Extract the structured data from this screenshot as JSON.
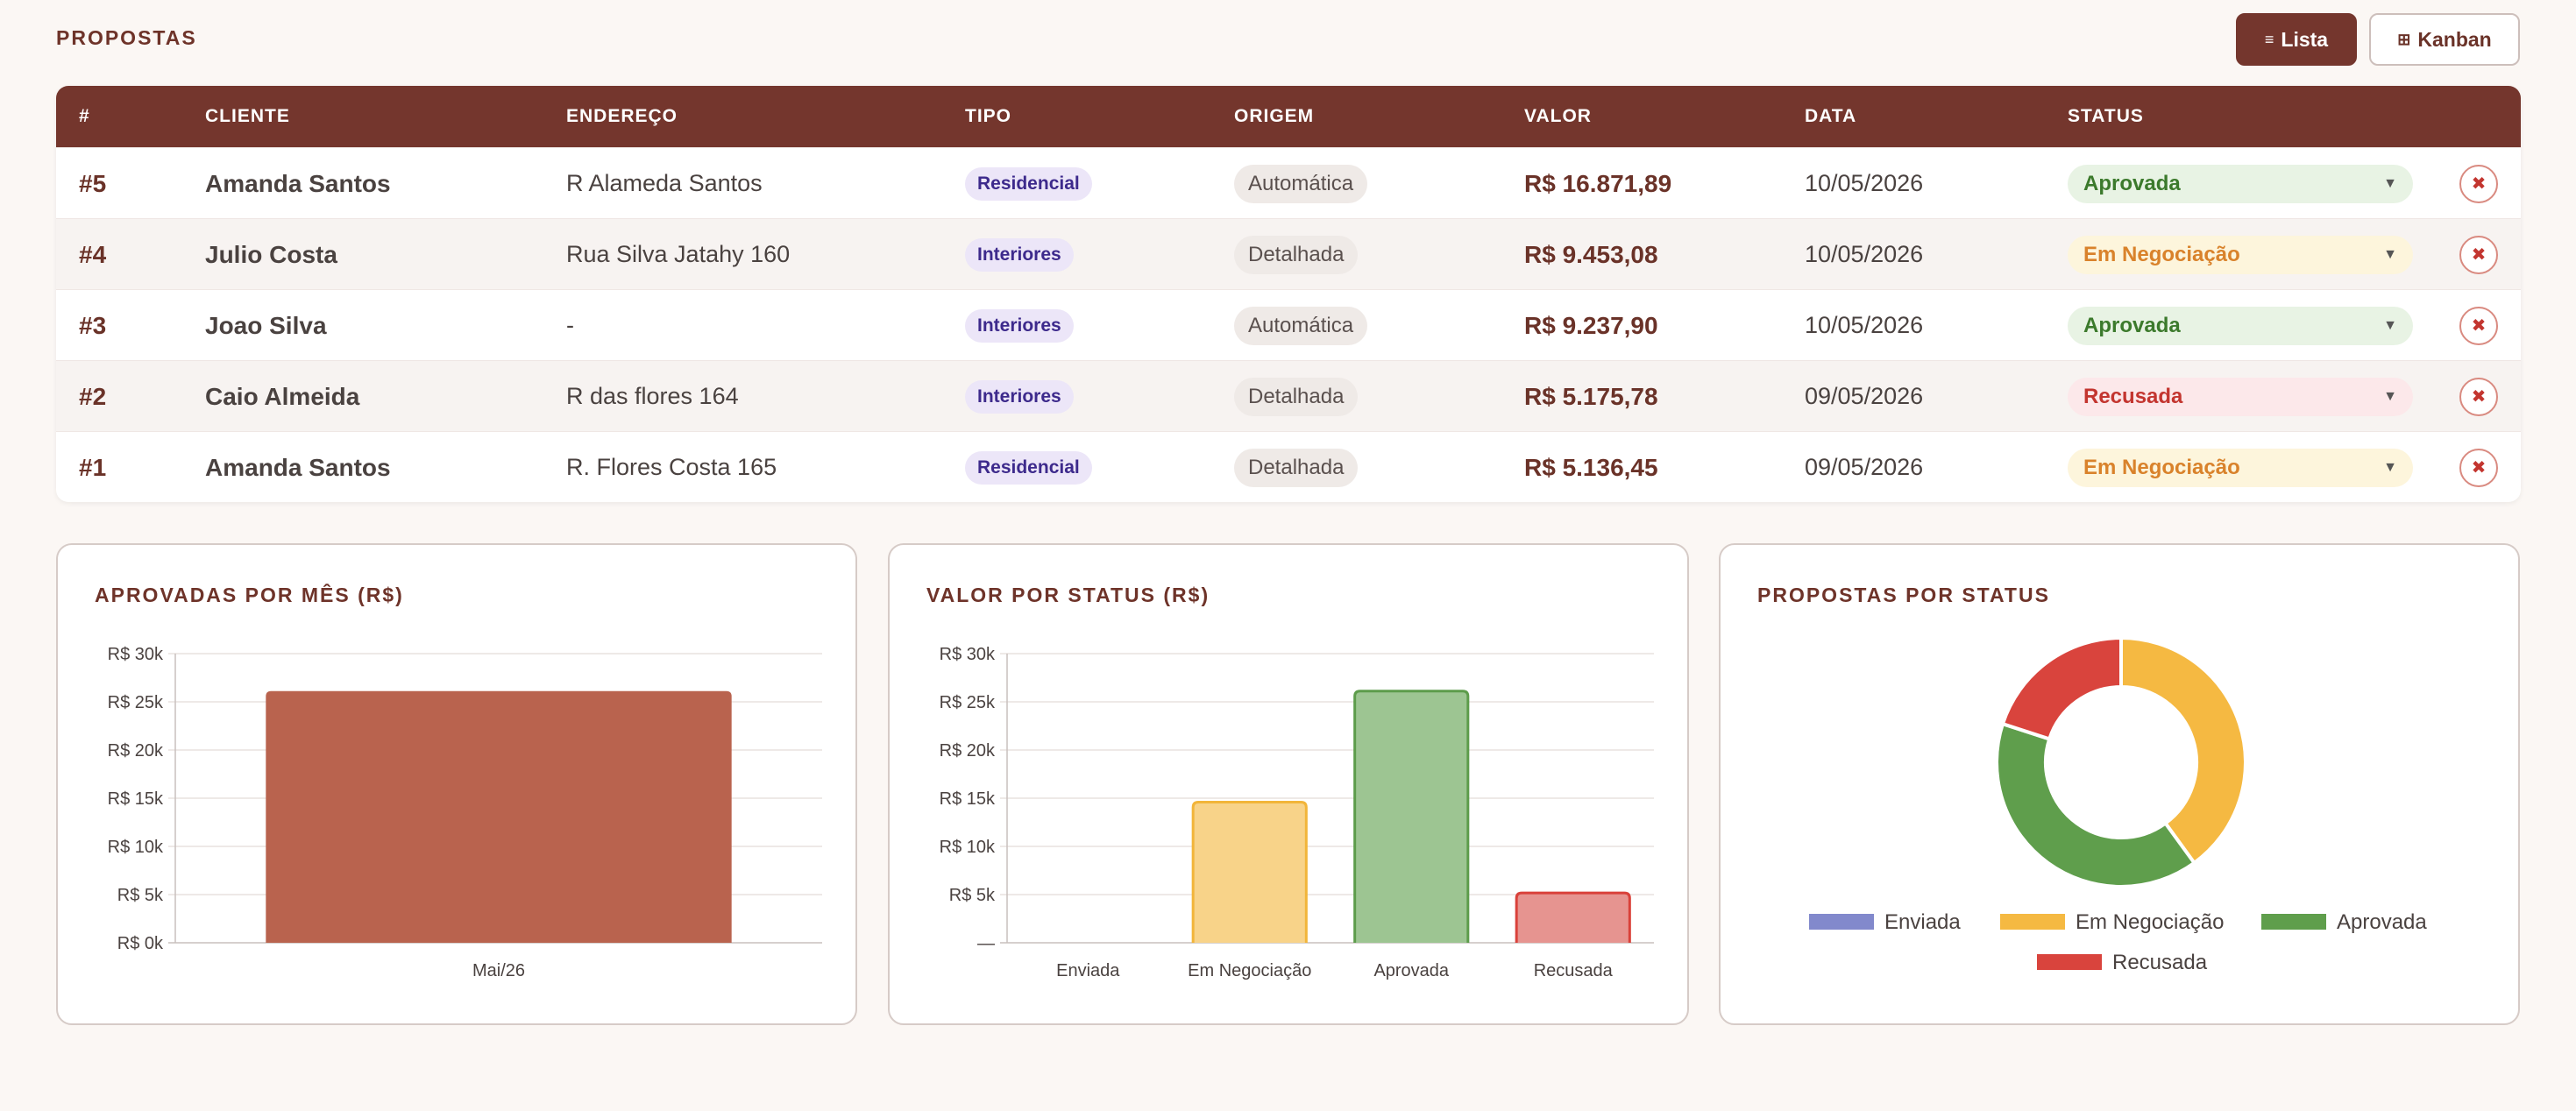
{
  "page": {
    "title": "PROPOSTAS"
  },
  "view_toggle": {
    "list_icon": "list-icon",
    "list_label": "Lista",
    "kanban_icon": "grid-icon",
    "kanban_label": "Kanban"
  },
  "table": {
    "headers": [
      "#",
      "CLIENTE",
      "ENDEREÇO",
      "TIPO",
      "ORIGEM",
      "VALOR",
      "DATA",
      "STATUS"
    ],
    "rows": [
      {
        "id": "#5",
        "cliente": "Amanda Santos",
        "endereco": "R Alameda Santos",
        "tipo": "Residencial",
        "origem": "Automática",
        "valor": "R$ 16.871,89",
        "data": "10/05/2026",
        "status": "Aprovada"
      },
      {
        "id": "#4",
        "cliente": "Julio Costa",
        "endereco": "Rua Silva Jatahy 160",
        "tipo": "Interiores",
        "origem": "Detalhada",
        "valor": "R$ 9.453,08",
        "data": "10/05/2026",
        "status": "Em Negociação"
      },
      {
        "id": "#3",
        "cliente": "Joao Silva",
        "endereco": "-",
        "tipo": "Interiores",
        "origem": "Automática",
        "valor": "R$ 9.237,90",
        "data": "10/05/2026",
        "status": "Aprovada"
      },
      {
        "id": "#2",
        "cliente": "Caio Almeida",
        "endereco": "R das flores 164",
        "tipo": "Interiores",
        "origem": "Detalhada",
        "valor": "R$ 5.175,78",
        "data": "09/05/2026",
        "status": "Recusada"
      },
      {
        "id": "#1",
        "cliente": "Amanda Santos",
        "endereco": "R. Flores Costa 165",
        "tipo": "Residencial",
        "origem": "Detalhada",
        "valor": "R$ 5.136,45",
        "data": "09/05/2026",
        "status": "Em Negociação"
      }
    ]
  },
  "chart_data": [
    {
      "type": "bar",
      "title": "APROVADAS POR MÊS (R$)",
      "categories": [
        "Mai/26"
      ],
      "values": [
        26109.79
      ],
      "ylim": [
        0,
        30000
      ],
      "yticks": [
        "R$ 0k",
        "R$ 5k",
        "R$ 10k",
        "R$ 15k",
        "R$ 20k",
        "R$ 25k",
        "R$ 30k"
      ],
      "colors": [
        "#b9634e"
      ],
      "grid": true
    },
    {
      "type": "bar",
      "title": "VALOR POR STATUS (R$)",
      "categories": [
        "Enviada",
        "Em Negociação",
        "Aprovada",
        "Recusada"
      ],
      "values": [
        0,
        14589.53,
        26109.79,
        5175.78
      ],
      "ylim": [
        0,
        30000
      ],
      "yticks": [
        "—",
        "R$ 5k",
        "R$ 10k",
        "R$ 15k",
        "R$ 20k",
        "R$ 25k",
        "R$ 30k"
      ],
      "fill_colors": [
        "#8d94d6",
        "#f8d389",
        "#9dc592",
        "#e69490"
      ],
      "stroke_colors": [
        "#7b83cc",
        "#f2b53a",
        "#5d9c4b",
        "#d9413a"
      ],
      "grid": true
    },
    {
      "type": "pie",
      "title": "PROPOSTAS POR STATUS",
      "labels": [
        "Enviada",
        "Em Negociação",
        "Aprovada",
        "Recusada"
      ],
      "values": [
        0,
        2,
        2,
        1
      ],
      "colors": [
        "#8289cc",
        "#f5b942",
        "#5f9e4c",
        "#d9443d"
      ],
      "legend": "bottom"
    }
  ]
}
